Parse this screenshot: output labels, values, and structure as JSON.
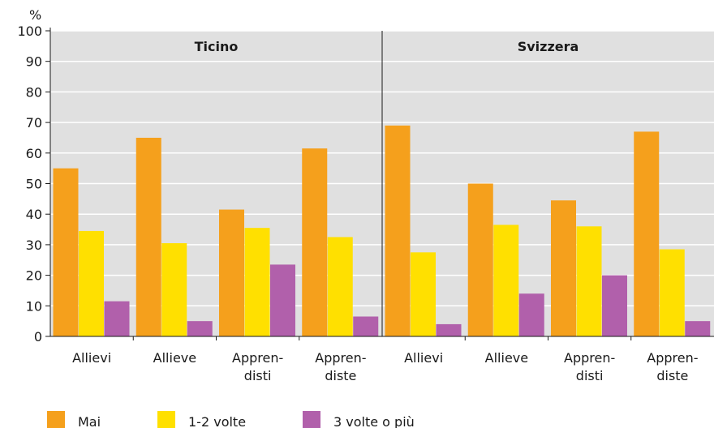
{
  "chart_data": {
    "type": "bar",
    "unit_label": "%",
    "ylim": [
      0,
      100
    ],
    "yticks": [
      0,
      10,
      20,
      30,
      40,
      50,
      60,
      70,
      80,
      90,
      100
    ],
    "grid": true,
    "legend_position": "bottom-left",
    "panels": [
      {
        "title": "Ticino",
        "categories": [
          [
            "Allievi"
          ],
          [
            "Allieve"
          ],
          [
            "Appren-",
            "disti"
          ],
          [
            "Appren-",
            "diste"
          ]
        ],
        "series": [
          {
            "name": "Mai",
            "values": [
              55,
              65,
              41.5,
              61.5
            ]
          },
          {
            "name": "1-2 volte",
            "values": [
              34.5,
              30.5,
              35.5,
              32.5
            ]
          },
          {
            "name": "3 volte o più",
            "values": [
              11.5,
              5,
              23.5,
              6.5
            ]
          }
        ]
      },
      {
        "title": "Svizzera",
        "categories": [
          [
            "Allievi"
          ],
          [
            "Allieve"
          ],
          [
            "Appren-",
            "disti"
          ],
          [
            "Appren-",
            "diste"
          ]
        ],
        "series": [
          {
            "name": "Mai",
            "values": [
              69,
              50,
              44.5,
              67
            ]
          },
          {
            "name": "1-2 volte",
            "values": [
              27.5,
              36.5,
              36,
              28.5
            ]
          },
          {
            "name": "3 volte o più",
            "values": [
              4,
              14,
              20,
              5
            ]
          }
        ]
      }
    ],
    "colors": [
      "#f5a01c",
      "#ffe000",
      "#b160ab"
    ],
    "background_color": "#e0e0e0",
    "gridline_color": "#ffffff"
  }
}
